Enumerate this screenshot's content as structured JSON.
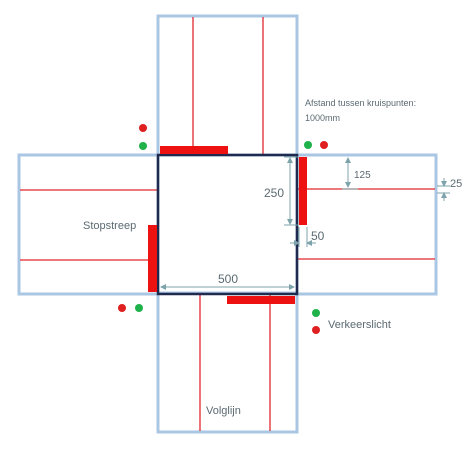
{
  "labels": {
    "distance_title": "Afstand tussen kruispunten:",
    "distance_value": "1000mm",
    "stopstreep": "Stopstreep",
    "volglijn": "Volglijn",
    "verkeerslicht": "Verkeerslicht"
  },
  "dimensions": {
    "width_500": "500",
    "height_250": "250",
    "offset_125": "125",
    "thickness_25": "25",
    "width_50": "50"
  },
  "colors": {
    "road_outline": "#a9c6e3",
    "center_square": "#1f2a4e",
    "follow_line": "#e0282e",
    "stop_line": "#ee1111",
    "light_red": "#e02020",
    "light_green": "#1fb14a",
    "dimension_line": "#9fb7bd",
    "label_text": "#5b6a72"
  }
}
